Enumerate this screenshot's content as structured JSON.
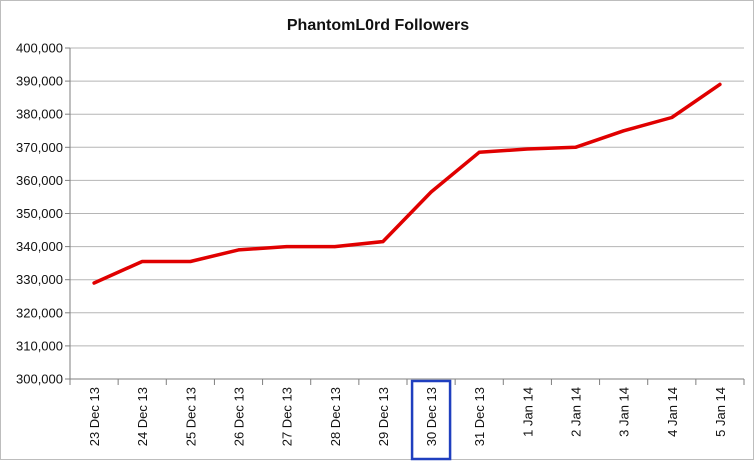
{
  "chart_data": {
    "type": "line",
    "title": "PhantomL0rd Followers",
    "xlabel": "",
    "ylabel": "",
    "categories": [
      "23 Dec 13",
      "24 Dec 13",
      "25 Dec 13",
      "26 Dec 13",
      "27 Dec 13",
      "28 Dec 13",
      "29 Dec 13",
      "30 Dec 13",
      "31 Dec 13",
      "1 Jan 14",
      "2 Jan 14",
      "3 Jan 14",
      "4 Jan 14",
      "5 Jan 14"
    ],
    "y_ticks": [
      "300,000",
      "310,000",
      "320,000",
      "330,000",
      "340,000",
      "350,000",
      "360,000",
      "370,000",
      "380,000",
      "390,000",
      "400,000"
    ],
    "series": [
      {
        "values": [
          329000,
          335500,
          335500,
          339000,
          340000,
          340000,
          341500,
          356500,
          368500,
          369500,
          370000,
          375000,
          379000,
          389000
        ],
        "color": "#e00000"
      }
    ],
    "ylim": [
      300000,
      400000
    ],
    "highlighted_category": "30 Dec 13",
    "highlight_color": "#1f3fbf",
    "grid": true,
    "legend": "none"
  }
}
